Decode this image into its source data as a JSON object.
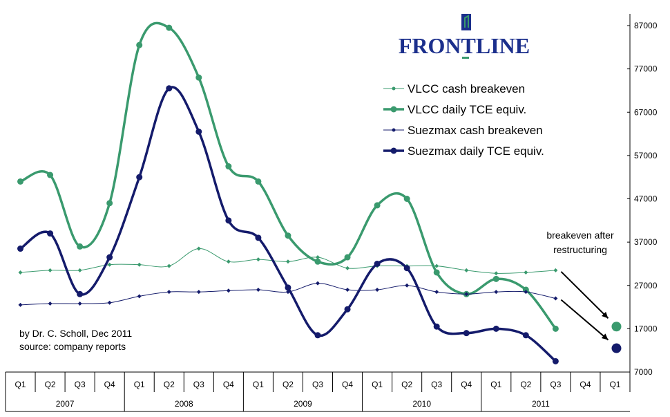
{
  "chart_data": {
    "type": "line",
    "title": "",
    "xlabel": "",
    "ylabel": "",
    "quarters": [
      "Q1",
      "Q2",
      "Q3",
      "Q4",
      "Q1",
      "Q2",
      "Q3",
      "Q4",
      "Q1",
      "Q2",
      "Q3",
      "Q4",
      "Q1",
      "Q2",
      "Q3",
      "Q4",
      "Q1",
      "Q2",
      "Q3",
      "Q4",
      "Q1"
    ],
    "years": [
      "2007",
      "2008",
      "2009",
      "2010",
      "2011"
    ],
    "y_ticks": [
      "7000",
      "17000",
      "27000",
      "37000",
      "47000",
      "57000",
      "67000",
      "77000",
      "87000"
    ],
    "ylim": [
      7000,
      87000
    ],
    "y_axis_position": "right",
    "grid": false,
    "legend_position": "top-right",
    "series": [
      {
        "name": "VLCC cash breakeven",
        "color": "#3a9a6e",
        "style": "thin",
        "values": [
          30000,
          30500,
          30500,
          31800,
          31800,
          31500,
          35500,
          32500,
          33000,
          32500,
          33500,
          31000,
          31500,
          31500,
          31500,
          30500,
          29800,
          30000,
          30500,
          null,
          null
        ]
      },
      {
        "name": "VLCC daily TCE equiv.",
        "color": "#3a9a6e",
        "style": "thick",
        "values": [
          51000,
          52500,
          36000,
          46000,
          82500,
          86500,
          75000,
          54500,
          51000,
          38500,
          32500,
          33500,
          45500,
          47000,
          30000,
          25000,
          28500,
          26000,
          17000,
          null,
          null
        ]
      },
      {
        "name": "Suezmax cash breakeven",
        "color": "#141b6b",
        "style": "thin",
        "values": [
          22500,
          22800,
          22800,
          23000,
          24500,
          25500,
          25500,
          25800,
          26000,
          25500,
          27500,
          26000,
          26000,
          27000,
          25500,
          25000,
          25500,
          25500,
          24000,
          null,
          null
        ]
      },
      {
        "name": "Suezmax daily TCE equiv.",
        "color": "#141b6b",
        "style": "thick",
        "values": [
          35500,
          39000,
          25000,
          33500,
          52000,
          72500,
          62500,
          42000,
          38000,
          26500,
          15500,
          21500,
          32000,
          31000,
          17500,
          16000,
          17000,
          15500,
          9500,
          null,
          null
        ]
      }
    ],
    "breakeven_after_restructuring": [
      {
        "series": "VLCC daily TCE equiv.",
        "color": "#3a9a6e",
        "quarter_index": 20,
        "value": 17500
      },
      {
        "series": "Suezmax daily TCE equiv.",
        "color": "#141b6b",
        "quarter_index": 20,
        "value": 12500
      }
    ],
    "annotations": {
      "restructuring_line1": "breakeven after",
      "restructuring_line2": "restructuring",
      "credit_line1": "by Dr. C. Scholl, Dec 2011",
      "credit_line2": "source: company reports"
    }
  },
  "logo": {
    "text": "FRONTLINE",
    "color": "#1b2f8c",
    "accent": "#3a9a6e"
  }
}
